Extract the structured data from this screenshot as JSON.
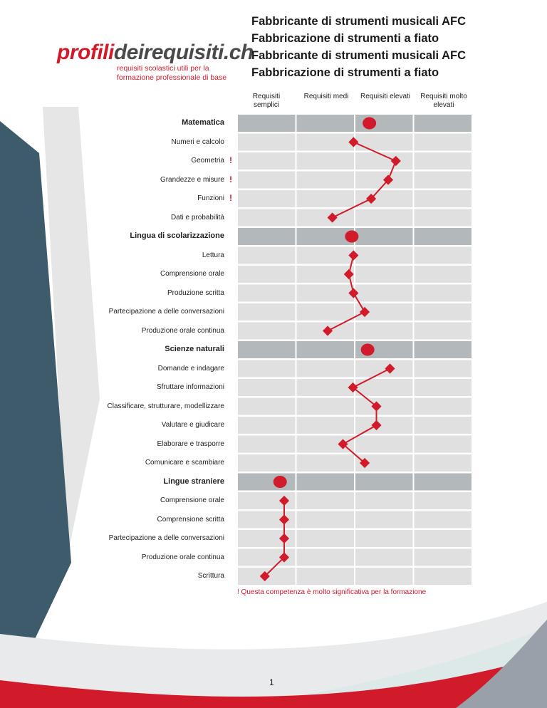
{
  "logo": {
    "part1": "profili",
    "part2": "deirequisiti.ch",
    "tagline1": "requisiti scolastici utili per la",
    "tagline2": "formazione professionale di base"
  },
  "titles": [
    "Fabbricante di strumenti musicali AFC",
    "Fabbricazione di strumenti a fiato",
    "Fabbricante di strumenti musicali AFC",
    "Fabbricazione di strumenti a fiato"
  ],
  "columns": [
    "Requisiti semplici",
    "Requisiti medi",
    "Requisiti elevati",
    "Requisiti molto elevati"
  ],
  "footnote": "! Questa competenza è molto significativa per la formazione",
  "page_number": "1",
  "colors": {
    "accent": "#d11a2a",
    "section_row": "#b3b8bb",
    "item_row": "#e0e0e0",
    "dark_band": "#3e5b6b"
  },
  "chart_data": {
    "type": "line",
    "scale": [
      "Requisiti semplici",
      "Requisiti medi",
      "Requisiti elevati",
      "Requisiti molto elevati"
    ],
    "xlim": [
      0,
      4
    ],
    "sections": [
      {
        "name": "Matematica",
        "level": 2.25,
        "items": [
          {
            "label": "Numeri e calcolo",
            "level": 1.98,
            "important": false
          },
          {
            "label": "Geometria",
            "level": 2.7,
            "important": true
          },
          {
            "label": "Grandezze e misure",
            "level": 2.57,
            "important": true
          },
          {
            "label": "Funzioni",
            "level": 2.28,
            "important": true
          },
          {
            "label": "Dati e probabilità",
            "level": 1.62,
            "important": false
          }
        ]
      },
      {
        "name": "Lingua di scolarizzazione",
        "level": 1.95,
        "items": [
          {
            "label": "Lettura",
            "level": 1.98,
            "important": false
          },
          {
            "label": "Comprensione orale",
            "level": 1.9,
            "important": false
          },
          {
            "label": "Produzione scritta",
            "level": 1.98,
            "important": false
          },
          {
            "label": "Partecipazione a delle conversazioni",
            "level": 2.17,
            "important": false
          },
          {
            "label": "Produzione orale continua",
            "level": 1.54,
            "important": false
          }
        ]
      },
      {
        "name": "Scienze naturali",
        "level": 2.22,
        "items": [
          {
            "label": "Domande e indagare",
            "level": 2.6,
            "important": false
          },
          {
            "label": "Sfruttare informazioni",
            "level": 1.97,
            "important": false
          },
          {
            "label": "Classificare, strutturare, modellizzare",
            "level": 2.37,
            "important": false
          },
          {
            "label": "Valutare e giudicare",
            "level": 2.37,
            "important": false
          },
          {
            "label": "Elaborare e trasporre",
            "level": 1.8,
            "important": false
          },
          {
            "label": "Comunicare e scambiare",
            "level": 2.17,
            "important": false
          }
        ]
      },
      {
        "name": "Lingue straniere",
        "level": 0.73,
        "items": [
          {
            "label": "Comprensione orale",
            "level": 0.8,
            "important": false
          },
          {
            "label": "Comprensione scritta",
            "level": 0.8,
            "important": false
          },
          {
            "label": "Partecipazione a delle conversazioni",
            "level": 0.8,
            "important": false
          },
          {
            "label": "Produzione orale continua",
            "level": 0.8,
            "important": false
          },
          {
            "label": "Scrittura",
            "level": 0.47,
            "important": false
          }
        ]
      }
    ]
  }
}
